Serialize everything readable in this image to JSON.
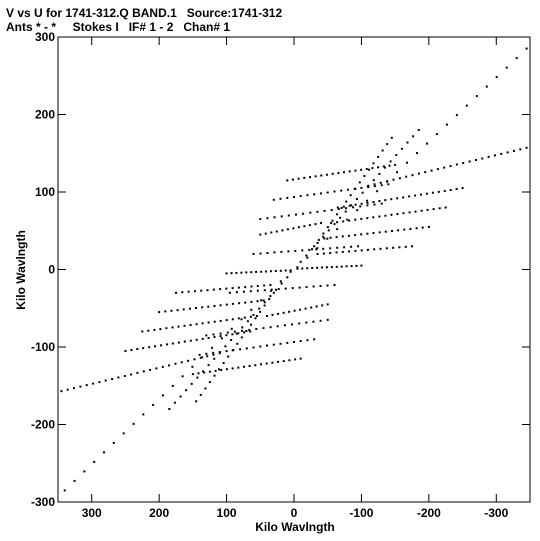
{
  "header": {
    "line1": "V vs U for 1741-312.Q BAND.1   Source:1741-312",
    "line2": "Ants * - *     Stokes I   IF# 1 - 2   Chan# 1"
  },
  "chart_data": {
    "type": "scatter",
    "title": "V vs U for 1741-312.Q BAND.1   Source:1741-312",
    "subtitle": "Ants * - *     Stokes I   IF# 1 - 2   Chan# 1",
    "xlabel": "Kilo Wavlngth",
    "ylabel": "Kilo Wavlngth",
    "xlim": [
      350,
      -350
    ],
    "ylim": [
      -300,
      300
    ],
    "x_reversed": true,
    "x_ticks": [
      300,
      200,
      100,
      0,
      -100,
      -200,
      -300
    ],
    "x_tick_labels": [
      "300",
      "200",
      "100",
      "0",
      "-100",
      "-200",
      "-300"
    ],
    "y_ticks": [
      -300,
      -200,
      -100,
      0,
      100,
      200,
      300
    ],
    "y_tick_labels": [
      "-300",
      "-200",
      "-100",
      "0",
      "100",
      "200",
      "300"
    ],
    "grid": false,
    "legend": "none",
    "marker_color": "#000000",
    "tracks": [
      {
        "u0": 345,
        "v0": -157,
        "u1": 110,
        "v1": -108,
        "n": 26
      },
      {
        "u0": -110,
        "v0": 108,
        "u1": -345,
        "v1": 157,
        "n": 26
      },
      {
        "u0": 250,
        "v0": -105,
        "u1": 65,
        "v1": -80,
        "n": 22
      },
      {
        "u0": -65,
        "v0": 80,
        "u1": -250,
        "v1": 105,
        "n": 22
      },
      {
        "u0": 225,
        "v0": -80,
        "u1": 55,
        "v1": -60,
        "n": 20
      },
      {
        "u0": -55,
        "v0": 60,
        "u1": -225,
        "v1": 80,
        "n": 20
      },
      {
        "u0": 200,
        "v0": -55,
        "u1": 45,
        "v1": -40,
        "n": 18
      },
      {
        "u0": -45,
        "v0": 40,
        "u1": -200,
        "v1": 55,
        "n": 18
      },
      {
        "u0": 175,
        "v0": -30,
        "u1": 35,
        "v1": -20,
        "n": 16
      },
      {
        "u0": -35,
        "v0": 20,
        "u1": -175,
        "v1": 30,
        "n": 16
      },
      {
        "u0": 100,
        "v0": -5,
        "u1": 5,
        "v1": -1,
        "n": 14
      },
      {
        "u0": -5,
        "v0": 1,
        "u1": -100,
        "v1": 5,
        "n": 14
      },
      {
        "u0": 150,
        "v0": -135,
        "u1": -10,
        "v1": -115,
        "n": 20
      },
      {
        "u0": 10,
        "v0": 115,
        "u1": -150,
        "v1": 135,
        "n": 20
      },
      {
        "u0": 140,
        "v0": -110,
        "u1": -30,
        "v1": -90,
        "n": 18
      },
      {
        "u0": 30,
        "v0": 90,
        "u1": -140,
        "v1": 110,
        "n": 18
      },
      {
        "u0": 130,
        "v0": -85,
        "u1": -50,
        "v1": -65,
        "n": 18
      },
      {
        "u0": 50,
        "v0": 65,
        "u1": -130,
        "v1": 85,
        "n": 18
      },
      {
        "u0": 95,
        "v0": -30,
        "u1": -60,
        "v1": -20,
        "n": 16
      },
      {
        "u0": 60,
        "v0": 20,
        "u1": -95,
        "v1": 30,
        "n": 16
      },
      {
        "u0": 40,
        "v0": -60,
        "u1": -50,
        "v1": -45,
        "n": 12
      },
      {
        "u0": 50,
        "v0": 45,
        "u1": -40,
        "v1": 60,
        "n": 12
      },
      {
        "u0": 340,
        "v0": -285,
        "u1": 5,
        "v1": -3,
        "n": 24
      },
      {
        "u0": -5,
        "v0": 3,
        "u1": -345,
        "v1": 285,
        "n": 24
      },
      {
        "u0": 185,
        "v0": -180,
        "u1": 10,
        "v1": -10,
        "n": 22
      },
      {
        "u0": -10,
        "v0": 10,
        "u1": -185,
        "v1": 180,
        "n": 22
      },
      {
        "u0": 145,
        "v0": -170,
        "u1": 30,
        "v1": -30,
        "n": 18
      },
      {
        "u0": -30,
        "v0": 30,
        "u1": -145,
        "v1": 170,
        "n": 18
      }
    ]
  }
}
